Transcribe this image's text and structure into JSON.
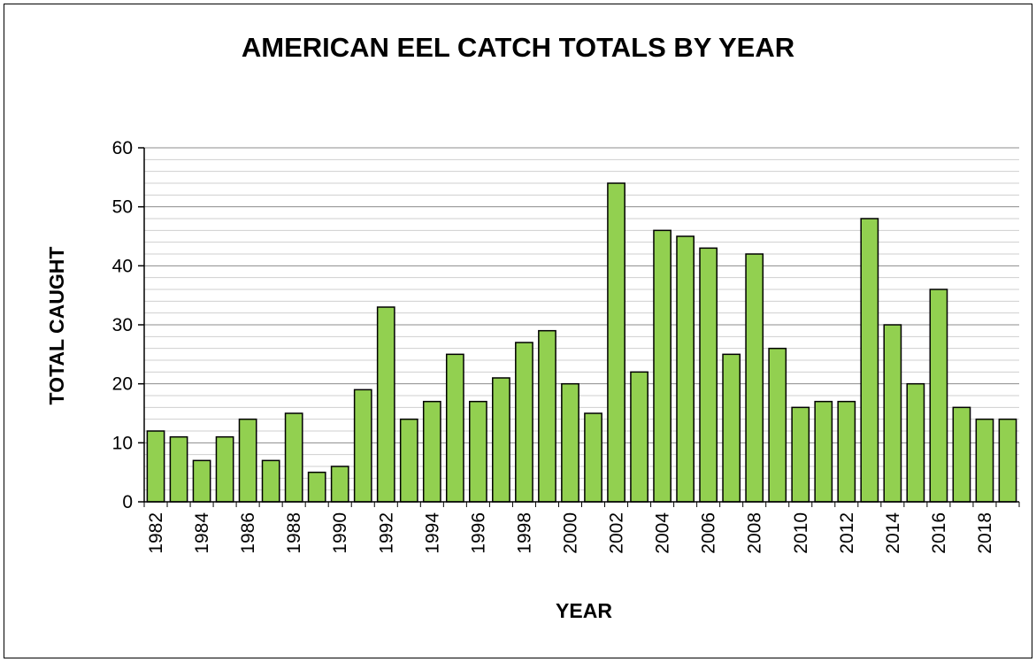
{
  "chart_data": {
    "type": "bar",
    "title": "AMERICAN EEL CATCH TOTALS BY YEAR",
    "xlabel": "YEAR",
    "ylabel": "TOTAL CAUGHT",
    "categories": [
      "1982",
      "1983",
      "1984",
      "1985",
      "1986",
      "1987",
      "1988",
      "1989",
      "1990",
      "1991",
      "1992",
      "1993",
      "1994",
      "1995",
      "1996",
      "1997",
      "1998",
      "1999",
      "2000",
      "2001",
      "2002",
      "2003",
      "2004",
      "2005",
      "2006",
      "2007",
      "2008",
      "2009",
      "2010",
      "2011",
      "2012",
      "2013",
      "2014",
      "2015",
      "2016",
      "2017",
      "2018",
      "2019"
    ],
    "x_tick_labels": [
      "1982",
      "1984",
      "1986",
      "1988",
      "1990",
      "1992",
      "1994",
      "1996",
      "1998",
      "2000",
      "2002",
      "2004",
      "2006",
      "2008",
      "2010",
      "2012",
      "2014",
      "2016",
      "2018"
    ],
    "values": [
      12,
      11,
      7,
      11,
      14,
      7,
      15,
      5,
      6,
      19,
      33,
      14,
      17,
      25,
      17,
      21,
      27,
      29,
      20,
      15,
      54,
      22,
      46,
      45,
      43,
      25,
      42,
      26,
      16,
      17,
      17,
      48,
      30,
      20,
      36,
      16,
      14,
      14
    ],
    "ylim": [
      0,
      60
    ],
    "y_ticks": [
      0,
      10,
      20,
      30,
      40,
      50,
      60
    ],
    "grid": true,
    "bar_color": "#92D050",
    "bar_edge_color": "#000000"
  }
}
